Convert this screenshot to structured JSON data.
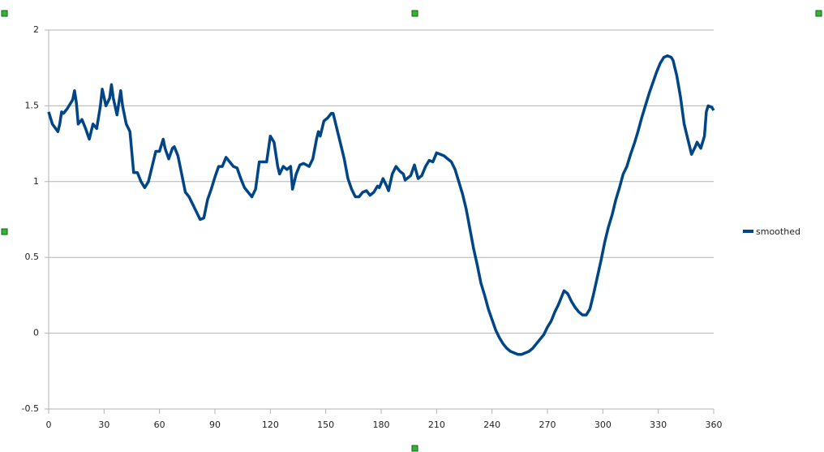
{
  "chart_data": {
    "type": "line",
    "x": [
      0,
      2,
      5,
      6,
      7,
      8,
      10,
      13,
      14,
      15,
      16,
      18,
      20,
      22,
      24,
      26,
      28,
      29,
      31,
      33,
      34,
      35,
      37,
      39,
      40,
      42,
      44,
      46,
      48,
      50,
      52,
      54,
      56,
      58,
      60,
      62,
      63,
      65,
      67,
      68,
      70,
      72,
      74,
      76,
      78,
      80,
      82,
      84,
      86,
      88,
      90,
      92,
      94,
      96,
      98,
      100,
      102,
      104,
      106,
      108,
      110,
      112,
      114,
      116,
      118,
      120,
      122,
      124,
      125,
      127,
      129,
      131,
      132,
      134,
      136,
      138,
      141,
      143,
      145,
      146,
      147,
      149,
      151,
      153,
      154,
      156,
      158,
      160,
      162,
      164,
      166,
      168,
      170,
      172,
      174,
      176,
      178,
      179,
      181,
      183,
      184,
      186,
      188,
      190,
      192,
      193,
      196,
      198,
      200,
      202,
      204,
      206,
      208,
      210,
      212,
      214,
      216,
      218,
      220,
      222,
      224,
      226,
      228,
      230,
      232,
      234,
      236,
      238,
      240,
      242,
      244,
      246,
      248,
      250,
      252,
      254,
      256,
      258,
      260,
      262,
      264,
      266,
      268,
      270,
      272,
      274,
      276,
      278,
      279,
      281,
      283,
      285,
      287,
      289,
      291,
      293,
      295,
      297,
      299,
      301,
      303,
      305,
      307,
      309,
      311,
      313,
      315,
      317,
      319,
      321,
      323,
      325,
      327,
      329,
      331,
      333,
      335,
      337,
      338,
      340,
      342,
      344,
      346,
      348,
      350,
      351,
      353,
      355,
      356,
      357,
      359,
      360
    ],
    "series": [
      {
        "name": "smoothed",
        "color": "#004586",
        "values": [
          1.46,
          1.38,
          1.33,
          1.38,
          1.46,
          1.45,
          1.48,
          1.54,
          1.6,
          1.52,
          1.38,
          1.41,
          1.35,
          1.28,
          1.38,
          1.35,
          1.5,
          1.61,
          1.5,
          1.55,
          1.64,
          1.55,
          1.44,
          1.6,
          1.5,
          1.38,
          1.33,
          1.06,
          1.06,
          1.0,
          0.96,
          1.0,
          1.1,
          1.2,
          1.2,
          1.28,
          1.22,
          1.15,
          1.22,
          1.23,
          1.17,
          1.05,
          0.93,
          0.9,
          0.85,
          0.8,
          0.75,
          0.76,
          0.88,
          0.95,
          1.03,
          1.1,
          1.1,
          1.16,
          1.13,
          1.1,
          1.09,
          1.02,
          0.96,
          0.93,
          0.9,
          0.95,
          1.13,
          1.13,
          1.13,
          1.3,
          1.26,
          1.1,
          1.05,
          1.1,
          1.08,
          1.1,
          0.95,
          1.05,
          1.11,
          1.12,
          1.1,
          1.15,
          1.28,
          1.33,
          1.3,
          1.4,
          1.42,
          1.45,
          1.45,
          1.35,
          1.25,
          1.15,
          1.02,
          0.95,
          0.9,
          0.9,
          0.93,
          0.94,
          0.91,
          0.93,
          0.97,
          0.96,
          1.02,
          0.97,
          0.94,
          1.05,
          1.1,
          1.07,
          1.05,
          1.01,
          1.04,
          1.11,
          1.02,
          1.04,
          1.1,
          1.14,
          1.13,
          1.19,
          1.18,
          1.17,
          1.15,
          1.13,
          1.08,
          1.0,
          0.92,
          0.82,
          0.69,
          0.56,
          0.45,
          0.33,
          0.25,
          0.16,
          0.09,
          0.02,
          -0.03,
          -0.07,
          -0.1,
          -0.12,
          -0.13,
          -0.14,
          -0.14,
          -0.13,
          -0.12,
          -0.1,
          -0.07,
          -0.04,
          -0.01,
          0.04,
          0.08,
          0.14,
          0.19,
          0.25,
          0.28,
          0.26,
          0.21,
          0.17,
          0.14,
          0.12,
          0.12,
          0.16,
          0.26,
          0.37,
          0.48,
          0.6,
          0.7,
          0.78,
          0.88,
          0.96,
          1.05,
          1.1,
          1.18,
          1.25,
          1.33,
          1.42,
          1.5,
          1.58,
          1.65,
          1.72,
          1.78,
          1.82,
          1.83,
          1.82,
          1.8,
          1.7,
          1.56,
          1.38,
          1.28,
          1.18,
          1.23,
          1.26,
          1.22,
          1.3,
          1.46,
          1.5,
          1.49,
          1.47
        ]
      }
    ],
    "xlim": [
      0,
      360
    ],
    "xticks": [
      0,
      30,
      60,
      90,
      120,
      150,
      180,
      210,
      240,
      270,
      300,
      330,
      360
    ],
    "ylim": [
      -0.5,
      2
    ],
    "yticks": [
      -0.5,
      0,
      0.5,
      1,
      1.5,
      2
    ],
    "grid": true,
    "legend": "right"
  }
}
